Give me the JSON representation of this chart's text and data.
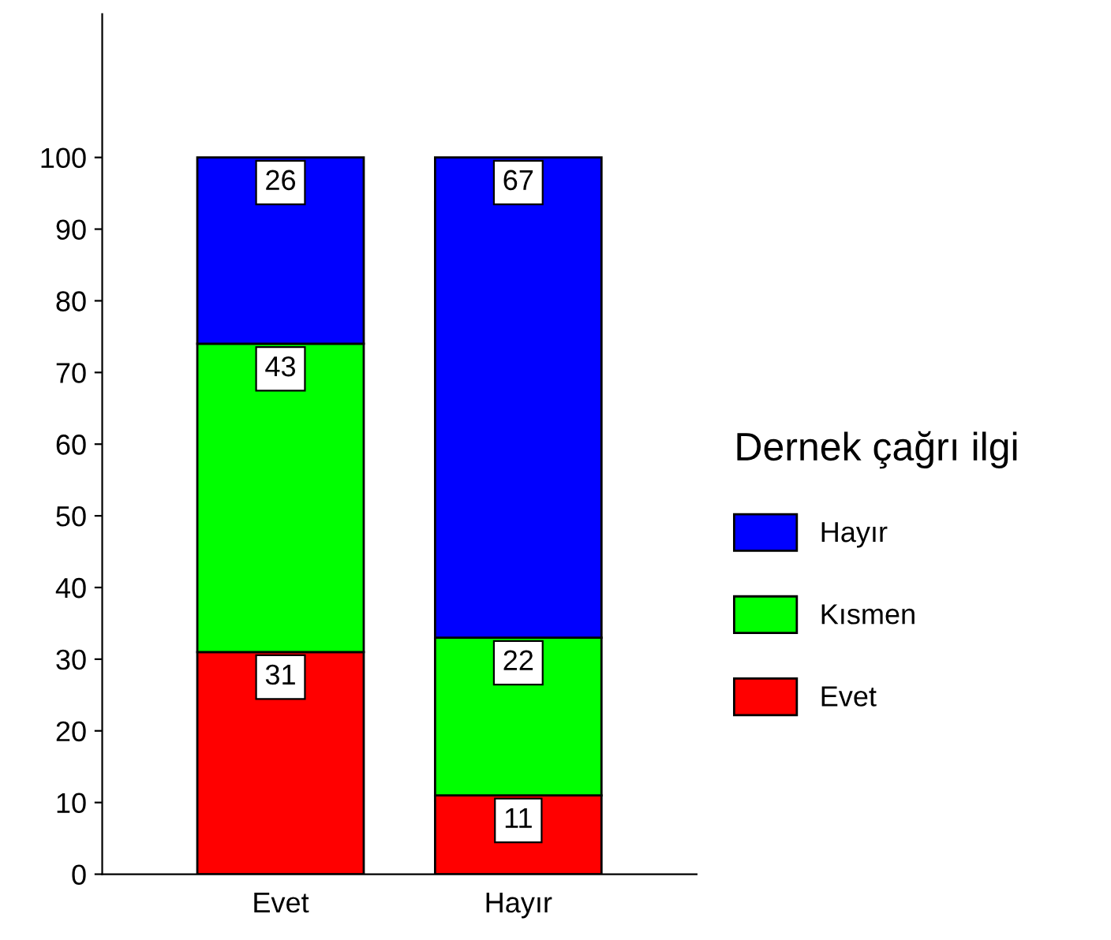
{
  "chart_data": {
    "type": "bar",
    "stacked": true,
    "categories": [
      "Evet",
      "Hayır"
    ],
    "series": [
      {
        "name": "Evet",
        "color": "#ff0000",
        "values": [
          31,
          11
        ]
      },
      {
        "name": "Kısmen",
        "color": "#00ff00",
        "values": [
          43,
          22
        ]
      },
      {
        "name": "Hayır",
        "color": "#0000ff",
        "values": [
          26,
          67
        ]
      }
    ],
    "legend_title": "Dernek çağrı ilgi",
    "legend": "right",
    "data_labels": true,
    "grid": false,
    "ylim": [
      0,
      120
    ],
    "yticks": [
      0,
      10,
      20,
      30,
      40,
      50,
      60,
      70,
      80,
      90,
      100
    ]
  }
}
